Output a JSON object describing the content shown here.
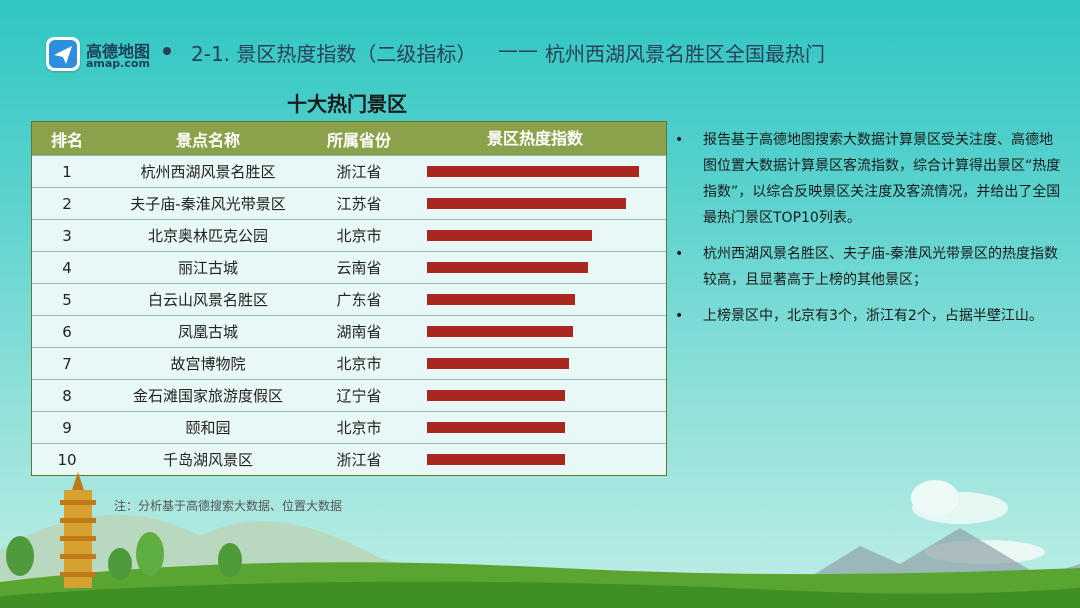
{
  "header": {
    "logo_name": "高德地图",
    "logo_url": "amap.com",
    "title": "2-1. 景区热度指数（二级指标）",
    "dash": "——",
    "subtitle": "杭州西湖风景名胜区全国最热门"
  },
  "chart_data": {
    "type": "table",
    "title": "十大热门景区",
    "columns": [
      "排名",
      "景点名称",
      "所属省份",
      "景区热度指数"
    ],
    "rows": [
      {
        "rank": "1",
        "name": "杭州西湖风景名胜区",
        "province": "浙江省",
        "value": 100
      },
      {
        "rank": "2",
        "name": "夫子庙-秦淮风光带景区",
        "province": "江苏省",
        "value": 94
      },
      {
        "rank": "3",
        "name": "北京奥林匹克公园",
        "province": "北京市",
        "value": 78
      },
      {
        "rank": "4",
        "name": "丽江古城",
        "province": "云南省",
        "value": 76
      },
      {
        "rank": "5",
        "name": "白云山风景名胜区",
        "province": "广东省",
        "value": 70
      },
      {
        "rank": "6",
        "name": "凤凰古城",
        "province": "湖南省",
        "value": 69
      },
      {
        "rank": "7",
        "name": "故宫博物院",
        "province": "北京市",
        "value": 67
      },
      {
        "rank": "8",
        "name": "金石滩国家旅游度假区",
        "province": "辽宁省",
        "value": 65
      },
      {
        "rank": "9",
        "name": "颐和园",
        "province": "北京市",
        "value": 65
      },
      {
        "rank": "10",
        "name": "千岛湖风景区",
        "province": "浙江省",
        "value": 65
      }
    ],
    "bar_color": "#a9271f"
  },
  "note": "注：分析基于高德搜索大数据、位置大数据",
  "bullets": [
    {
      "dot": "•",
      "text": "报告基于高德地图搜索大数据计算景区受关注度、高德地图位置大数据计算景区客流指数，综合计算得出景区“热度指数”，以综合反映景区关注度及客流情况，并给出了全国最热门景区TOP10列表。"
    },
    {
      "dot": "•",
      "text": "杭州西湖风景名胜区、夫子庙-秦淮风光带景区的热度指数较高，且显著高于上榜的其他景区；"
    },
    {
      "dot": "•",
      "text": "上榜景区中，北京有3个，浙江有2个，占据半壁江山。"
    }
  ]
}
